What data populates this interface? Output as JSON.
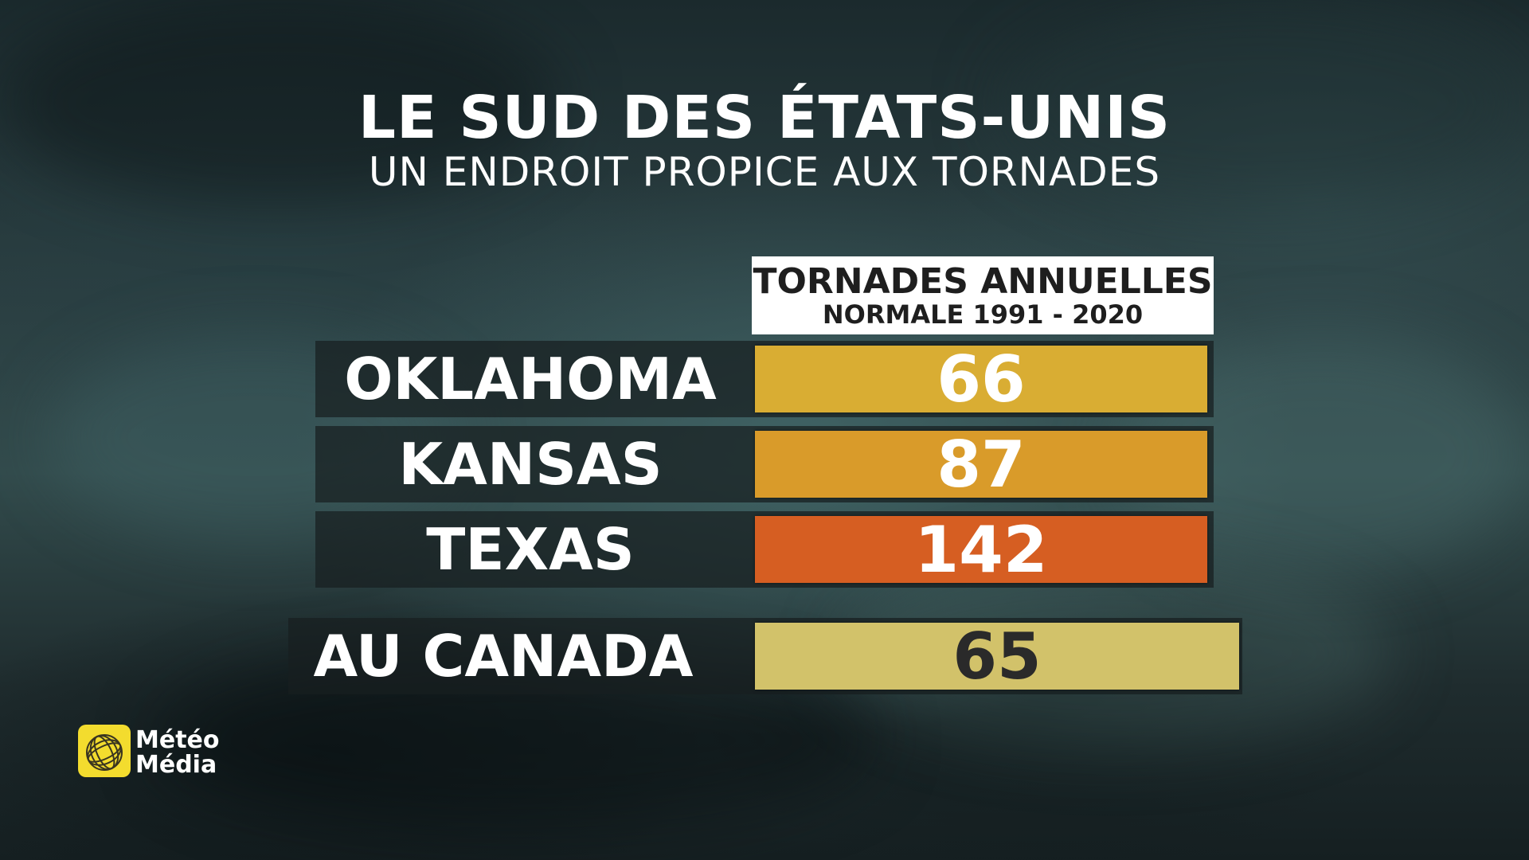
{
  "colors": {
    "oklahoma": "#d9ad33",
    "kansas": "#d99b2a",
    "texas": "#d65e22",
    "canada": "#d2c26a",
    "canada_text": "#2a2a2a",
    "logo_yellow": "#f3dc2e"
  },
  "title": "LE SUD DES ÉTATS-UNIS",
  "subtitle": "UN ENDROIT PROPICE AUX TORNADES",
  "header": {
    "line1": "TORNADES ANNUELLES",
    "line2": "NORMALE 1991 - 2020"
  },
  "rows": [
    {
      "label": "OKLAHOMA",
      "value": "66"
    },
    {
      "label": "KANSAS",
      "value": "87"
    },
    {
      "label": "TEXAS",
      "value": "142"
    }
  ],
  "canada": {
    "label": "AU CANADA",
    "value": "65"
  },
  "logo": {
    "line1": "Météo",
    "line2": "Média",
    "icon": "meteomedia-globe-icon"
  }
}
